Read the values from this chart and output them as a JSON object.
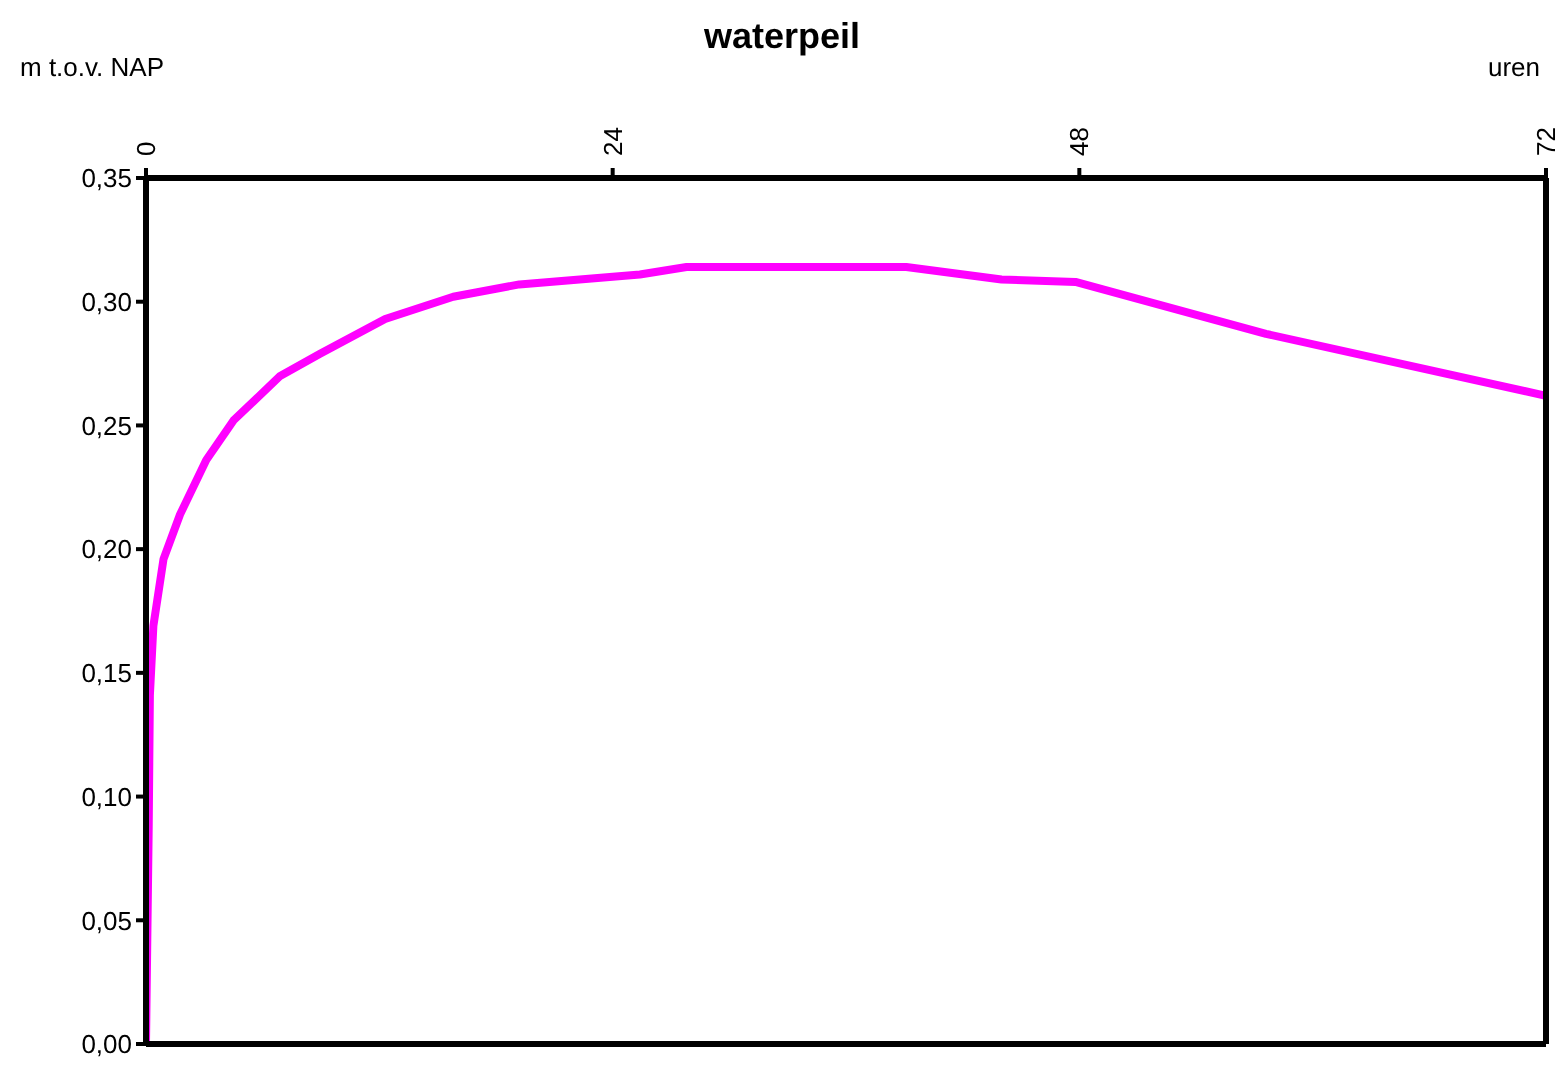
{
  "chart_data": {
    "type": "line",
    "title": "waterpeil",
    "xlabel": "uren",
    "ylabel": "m t.o.v. NAP",
    "x": [
      0,
      0.14,
      0.2,
      0.38,
      0.9,
      1.75,
      3.1,
      4.5,
      6.9,
      8.95,
      12.3,
      15.8,
      19.2,
      25.4,
      27.8,
      39.1,
      44,
      47.8,
      57.6,
      72
    ],
    "series": [
      {
        "color": "#ff00ff",
        "values": [
          0,
          0.088,
          0.141,
          0.169,
          0.196,
          0.214,
          0.236,
          0.252,
          0.27,
          0.279,
          0.293,
          0.302,
          0.307,
          0.311,
          0.314,
          0.314,
          0.309,
          0.308,
          0.287,
          0.262
        ]
      }
    ],
    "xlim": [
      0,
      72
    ],
    "xticks": [
      0,
      24,
      48,
      72
    ],
    "ylim": [
      0,
      0.35
    ],
    "yticks": [
      {
        "value": 0,
        "label": "0,00"
      },
      {
        "value": 0.05,
        "label": "0,05"
      },
      {
        "value": 0.1,
        "label": "0,10"
      },
      {
        "value": 0.15,
        "label": "0,15"
      },
      {
        "value": 0.2,
        "label": "0,20"
      },
      {
        "value": 0.25,
        "label": "0,25"
      },
      {
        "value": 0.3,
        "label": "0,30"
      },
      {
        "value": 0.35,
        "label": "0,35"
      }
    ],
    "grid": false,
    "legend": false,
    "marker": "none",
    "line_style": "solid"
  }
}
